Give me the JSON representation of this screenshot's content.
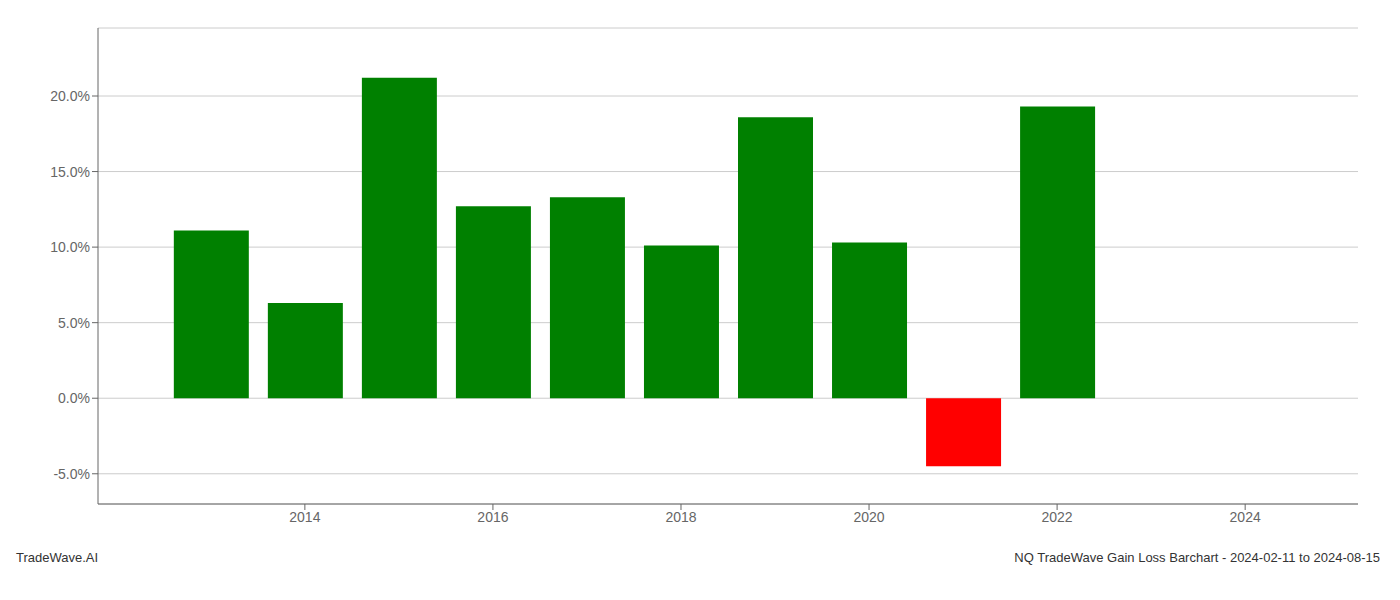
{
  "chart_data": {
    "type": "bar",
    "x": [
      2013,
      2014,
      2015,
      2016,
      2017,
      2018,
      2019,
      2020,
      2021,
      2022
    ],
    "values": [
      0.111,
      0.063,
      0.212,
      0.127,
      0.133,
      0.101,
      0.186,
      0.103,
      -0.045,
      0.193
    ],
    "colors": [
      "#008000",
      "#008000",
      "#008000",
      "#008000",
      "#008000",
      "#008000",
      "#008000",
      "#008000",
      "#ff0000",
      "#008000"
    ],
    "xlim": [
      2011.8,
      2025.2
    ],
    "xticks": [
      2014,
      2016,
      2018,
      2020,
      2022,
      2024
    ],
    "ylim": [
      -0.07,
      0.245
    ],
    "yticks": [
      {
        "value": -0.05,
        "label": "-5.0%"
      },
      {
        "value": 0.0,
        "label": "0.0%"
      },
      {
        "value": 0.05,
        "label": "5.0%"
      },
      {
        "value": 0.1,
        "label": "10.0%"
      },
      {
        "value": 0.15,
        "label": "15.0%"
      },
      {
        "value": 0.2,
        "label": "20.0%"
      }
    ],
    "grid": true,
    "annotations": [
      "TradeWave.AI",
      "NQ TradeWave Gain Loss Barchart - 2024-02-11 to 2024-08-15"
    ]
  }
}
